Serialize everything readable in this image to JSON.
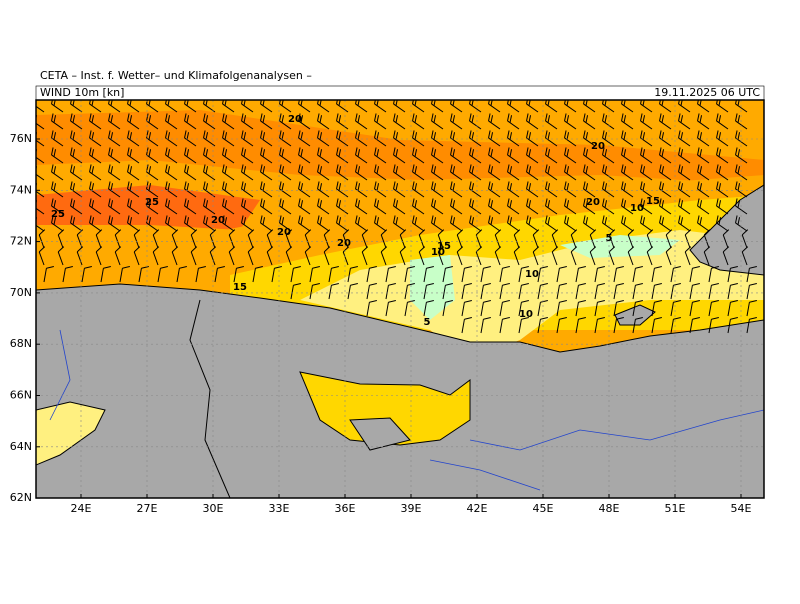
{
  "header": {
    "title": "CETA – Inst. f. Wetter– und Klimafolgenanalysen –",
    "field": "WIND 10m [kn]",
    "valid_time": "19.11.2025 06 UTC"
  },
  "map": {
    "lat_labels": [
      "76N",
      "74N",
      "72N",
      "70N",
      "68N",
      "66N",
      "64N",
      "62N"
    ],
    "lon_labels": [
      "24E",
      "27E",
      "30E",
      "33E",
      "36E",
      "39E",
      "42E",
      "45E",
      "48E",
      "51E",
      "54E"
    ],
    "contour_labels": [
      "20",
      "20",
      "25",
      "25",
      "20",
      "20",
      "20",
      "20",
      "15",
      "10",
      "5",
      "15",
      "10",
      "10",
      "15",
      "5",
      "10"
    ]
  }
}
